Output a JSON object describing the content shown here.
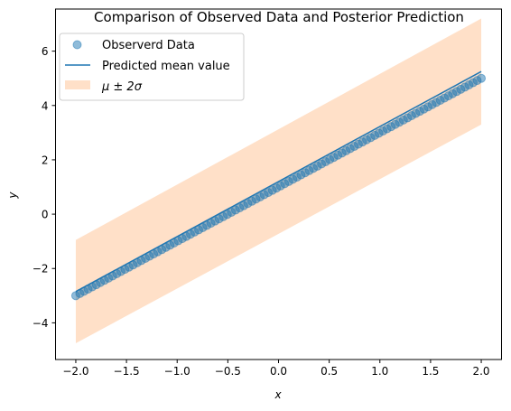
{
  "chart_data": {
    "type": "scatter",
    "title": "Comparison of Observed Data and Posterior Prediction",
    "xlabel": "x",
    "ylabel": "y",
    "xlim": [
      -2.2,
      2.2
    ],
    "ylim": [
      -5.35,
      7.55
    ],
    "x_ticks": [
      -2.0,
      -1.5,
      -1.0,
      -0.5,
      0.0,
      0.5,
      1.0,
      1.5,
      2.0
    ],
    "x_tick_labels": [
      "−2.0",
      "−1.5",
      "−1.0",
      "−0.5",
      "0.0",
      "0.5",
      "1.0",
      "1.5",
      "2.0"
    ],
    "y_ticks": [
      -4,
      -2,
      0,
      2,
      4,
      6
    ],
    "y_tick_labels": [
      "−4",
      "−2",
      "0",
      "2",
      "4",
      "6"
    ],
    "grid": false,
    "legend_placement": "top-left",
    "series": [
      {
        "name": "Observerd Data",
        "kind": "scatter",
        "color": "#1f77b4",
        "alpha": 0.5,
        "x_start": -2.0,
        "x_end": 2.0,
        "n_points": 100,
        "slope": 2.0,
        "intercept": 1.0
      },
      {
        "name": "Predicted mean value",
        "kind": "line",
        "color": "#1f77b4",
        "x": [
          -2.0,
          2.0
        ],
        "y": [
          -2.85,
          5.25
        ]
      },
      {
        "name": "μ ± 2σ",
        "kind": "band",
        "color": "#ffe0c8",
        "x": [
          -2.0,
          2.0
        ],
        "lower": [
          -4.75,
          3.3
        ],
        "upper": [
          -0.95,
          7.2
        ]
      }
    ]
  }
}
